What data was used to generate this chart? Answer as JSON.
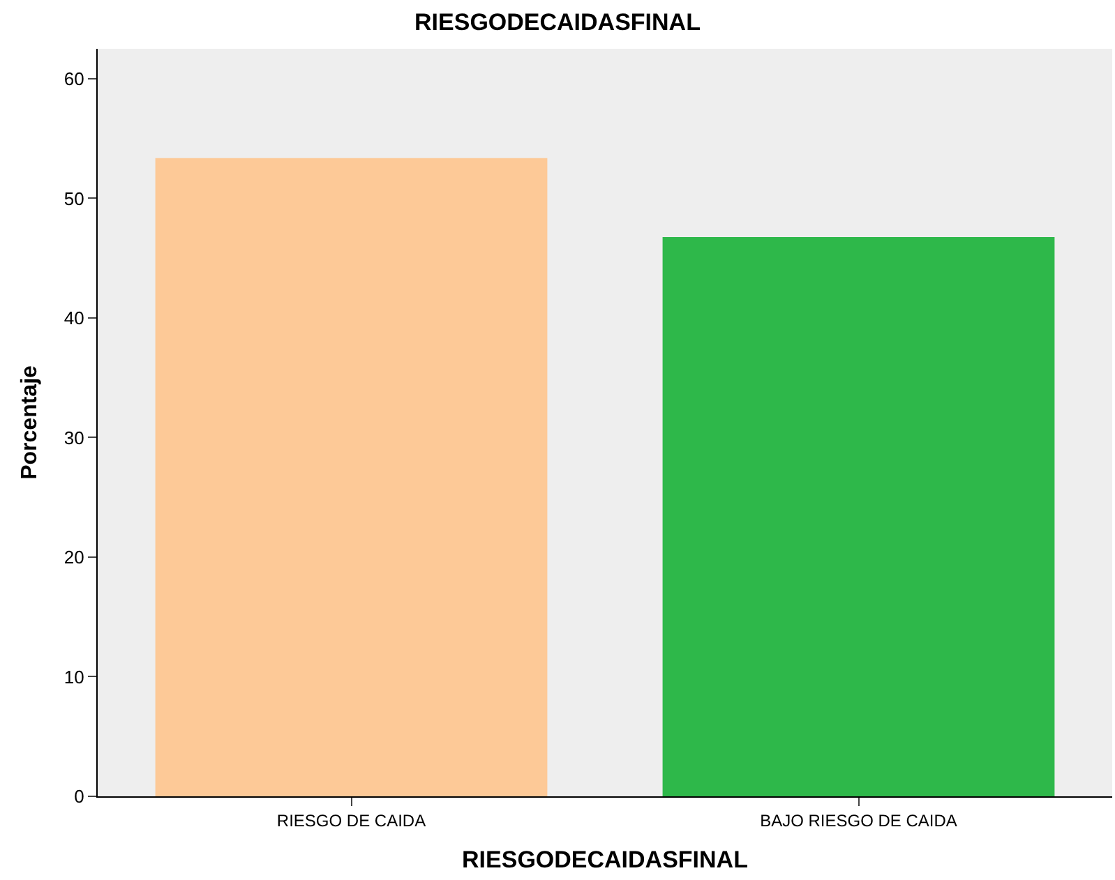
{
  "chart_data": {
    "type": "bar",
    "title": "RIESGODECAIDASFINAL",
    "xlabel": "RIESGODECAIDASFINAL",
    "ylabel": "Porcentaje",
    "categories": [
      "RIESGO DE CAIDA",
      "BAJO RIESGO DE CAIDA"
    ],
    "values": [
      53.3,
      46.7
    ],
    "colors": [
      "#fdc997",
      "#2eb84a"
    ],
    "ylim": [
      0,
      62.5
    ],
    "yticks": [
      0,
      10,
      20,
      30,
      40,
      50,
      60
    ]
  }
}
